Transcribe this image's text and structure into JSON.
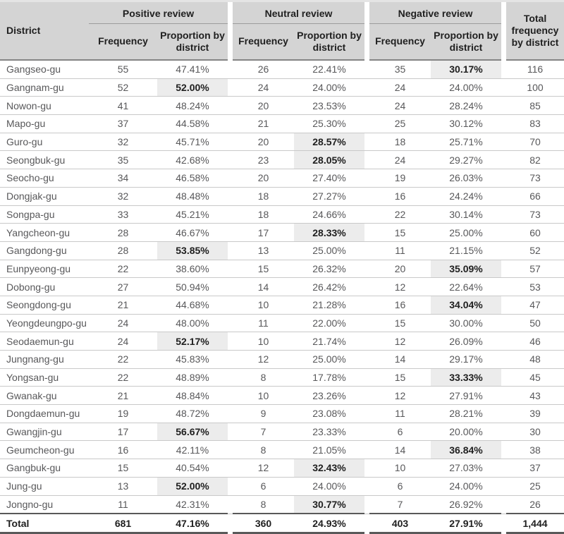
{
  "table": {
    "district_header": "District",
    "groups": [
      {
        "label": "Positive review"
      },
      {
        "label": "Neutral review"
      },
      {
        "label": "Negative review"
      }
    ],
    "sub_headers": {
      "frequency": "Frequency",
      "proportion": "Proportion by district"
    },
    "total_header": "Total frequency by district",
    "rows": [
      {
        "district": "Gangseo-gu",
        "pos_f": "55",
        "pos_p": "47.41%",
        "neu_f": "26",
        "neu_p": "22.41%",
        "neg_f": "35",
        "neg_p": "30.17%",
        "total": "116",
        "highlight": "neg_p"
      },
      {
        "district": "Gangnam-gu",
        "pos_f": "52",
        "pos_p": "52.00%",
        "neu_f": "24",
        "neu_p": "24.00%",
        "neg_f": "24",
        "neg_p": "24.00%",
        "total": "100",
        "highlight": "pos_p"
      },
      {
        "district": "Nowon-gu",
        "pos_f": "41",
        "pos_p": "48.24%",
        "neu_f": "20",
        "neu_p": "23.53%",
        "neg_f": "24",
        "neg_p": "28.24%",
        "total": "85",
        "highlight": null
      },
      {
        "district": "Mapo-gu",
        "pos_f": "37",
        "pos_p": "44.58%",
        "neu_f": "21",
        "neu_p": "25.30%",
        "neg_f": "25",
        "neg_p": "30.12%",
        "total": "83",
        "highlight": null
      },
      {
        "district": "Guro-gu",
        "pos_f": "32",
        "pos_p": "45.71%",
        "neu_f": "20",
        "neu_p": "28.57%",
        "neg_f": "18",
        "neg_p": "25.71%",
        "total": "70",
        "highlight": "neu_p"
      },
      {
        "district": "Seongbuk-gu",
        "pos_f": "35",
        "pos_p": "42.68%",
        "neu_f": "23",
        "neu_p": "28.05%",
        "neg_f": "24",
        "neg_p": "29.27%",
        "total": "82",
        "highlight": "neu_p"
      },
      {
        "district": "Seocho-gu",
        "pos_f": "34",
        "pos_p": "46.58%",
        "neu_f": "20",
        "neu_p": "27.40%",
        "neg_f": "19",
        "neg_p": "26.03%",
        "total": "73",
        "highlight": null
      },
      {
        "district": "Dongjak-gu",
        "pos_f": "32",
        "pos_p": "48.48%",
        "neu_f": "18",
        "neu_p": "27.27%",
        "neg_f": "16",
        "neg_p": "24.24%",
        "total": "66",
        "highlight": null
      },
      {
        "district": "Songpa-gu",
        "pos_f": "33",
        "pos_p": "45.21%",
        "neu_f": "18",
        "neu_p": "24.66%",
        "neg_f": "22",
        "neg_p": "30.14%",
        "total": "73",
        "highlight": null
      },
      {
        "district": "Yangcheon-gu",
        "pos_f": "28",
        "pos_p": "46.67%",
        "neu_f": "17",
        "neu_p": "28.33%",
        "neg_f": "15",
        "neg_p": "25.00%",
        "total": "60",
        "highlight": "neu_p"
      },
      {
        "district": "Gangdong-gu",
        "pos_f": "28",
        "pos_p": "53.85%",
        "neu_f": "13",
        "neu_p": "25.00%",
        "neg_f": "11",
        "neg_p": "21.15%",
        "total": "52",
        "highlight": "pos_p"
      },
      {
        "district": "Eunpyeong-gu",
        "pos_f": "22",
        "pos_p": "38.60%",
        "neu_f": "15",
        "neu_p": "26.32%",
        "neg_f": "20",
        "neg_p": "35.09%",
        "total": "57",
        "highlight": "neg_p"
      },
      {
        "district": "Dobong-gu",
        "pos_f": "27",
        "pos_p": "50.94%",
        "neu_f": "14",
        "neu_p": "26.42%",
        "neg_f": "12",
        "neg_p": "22.64%",
        "total": "53",
        "highlight": null
      },
      {
        "district": "Seongdong-gu",
        "pos_f": "21",
        "pos_p": "44.68%",
        "neu_f": "10",
        "neu_p": "21.28%",
        "neg_f": "16",
        "neg_p": "34.04%",
        "total": "47",
        "highlight": "neg_p"
      },
      {
        "district": "Yeongdeungpo-gu",
        "pos_f": "24",
        "pos_p": "48.00%",
        "neu_f": "11",
        "neu_p": "22.00%",
        "neg_f": "15",
        "neg_p": "30.00%",
        "total": "50",
        "highlight": null
      },
      {
        "district": "Seodaemun-gu",
        "pos_f": "24",
        "pos_p": "52.17%",
        "neu_f": "10",
        "neu_p": "21.74%",
        "neg_f": "12",
        "neg_p": "26.09%",
        "total": "46",
        "highlight": "pos_p"
      },
      {
        "district": "Jungnang-gu",
        "pos_f": "22",
        "pos_p": "45.83%",
        "neu_f": "12",
        "neu_p": "25.00%",
        "neg_f": "14",
        "neg_p": "29.17%",
        "total": "48",
        "highlight": null
      },
      {
        "district": "Yongsan-gu",
        "pos_f": "22",
        "pos_p": "48.89%",
        "neu_f": "8",
        "neu_p": "17.78%",
        "neg_f": "15",
        "neg_p": "33.33%",
        "total": "45",
        "highlight": "neg_p"
      },
      {
        "district": "Gwanak-gu",
        "pos_f": "21",
        "pos_p": "48.84%",
        "neu_f": "10",
        "neu_p": "23.26%",
        "neg_f": "12",
        "neg_p": "27.91%",
        "total": "43",
        "highlight": null
      },
      {
        "district": "Dongdaemun-gu",
        "pos_f": "19",
        "pos_p": "48.72%",
        "neu_f": "9",
        "neu_p": "23.08%",
        "neg_f": "11",
        "neg_p": "28.21%",
        "total": "39",
        "highlight": null
      },
      {
        "district": "Gwangjin-gu",
        "pos_f": "17",
        "pos_p": "56.67%",
        "neu_f": "7",
        "neu_p": "23.33%",
        "neg_f": "6",
        "neg_p": "20.00%",
        "total": "30",
        "highlight": "pos_p"
      },
      {
        "district": "Geumcheon-gu",
        "pos_f": "16",
        "pos_p": "42.11%",
        "neu_f": "8",
        "neu_p": "21.05%",
        "neg_f": "14",
        "neg_p": "36.84%",
        "total": "38",
        "highlight": "neg_p"
      },
      {
        "district": "Gangbuk-gu",
        "pos_f": "15",
        "pos_p": "40.54%",
        "neu_f": "12",
        "neu_p": "32.43%",
        "neg_f": "10",
        "neg_p": "27.03%",
        "total": "37",
        "highlight": "neu_p"
      },
      {
        "district": "Jung-gu",
        "pos_f": "13",
        "pos_p": "52.00%",
        "neu_f": "6",
        "neu_p": "24.00%",
        "neg_f": "6",
        "neg_p": "24.00%",
        "total": "25",
        "highlight": "pos_p"
      },
      {
        "district": "Jongno-gu",
        "pos_f": "11",
        "pos_p": "42.31%",
        "neu_f": "8",
        "neu_p": "30.77%",
        "neg_f": "7",
        "neg_p": "26.92%",
        "total": "26",
        "highlight": "neu_p"
      }
    ],
    "total_row": {
      "district": "Total",
      "pos_f": "681",
      "pos_p": "47.16%",
      "neu_f": "360",
      "neu_p": "24.93%",
      "neg_f": "403",
      "neg_p": "27.91%",
      "total": "1,444"
    }
  },
  "colors": {
    "header_bg": "#d4d4d4",
    "highlight_bg": "#ececec",
    "row_line": "#c9c9c9",
    "header_line": "#848484",
    "total_line": "#595959",
    "body_text": "#58585a",
    "strong_text": "#202020"
  }
}
